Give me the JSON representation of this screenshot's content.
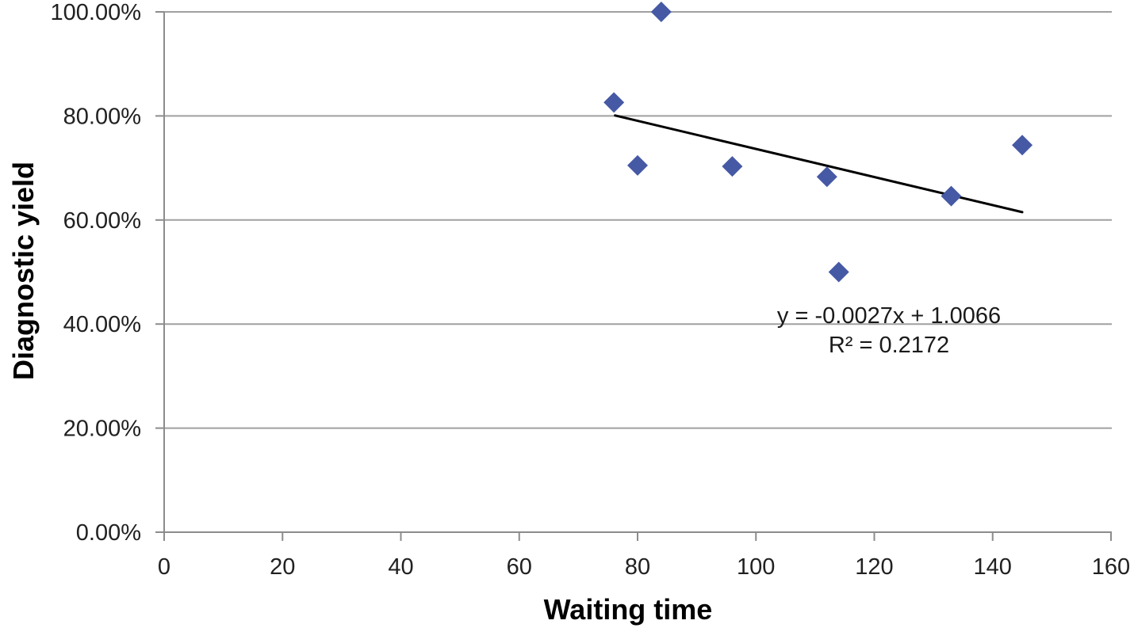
{
  "chart_data": {
    "type": "scatter",
    "title": "",
    "xlabel": "Waiting time",
    "ylabel": "Diagnostic yield",
    "xlim": [
      0,
      160
    ],
    "ylim_percent": [
      0,
      100
    ],
    "grid": "horizontal-only",
    "legend": "none",
    "x_ticks": [
      {
        "value": 0,
        "label": "0"
      },
      {
        "value": 20,
        "label": "20"
      },
      {
        "value": 40,
        "label": "40"
      },
      {
        "value": 60,
        "label": "60"
      },
      {
        "value": 80,
        "label": "80"
      },
      {
        "value": 100,
        "label": "100"
      },
      {
        "value": 120,
        "label": "120"
      },
      {
        "value": 140,
        "label": "140"
      },
      {
        "value": 160,
        "label": "160"
      }
    ],
    "y_ticks": [
      {
        "value": 0,
        "label": "0.00%"
      },
      {
        "value": 20,
        "label": "20.00%"
      },
      {
        "value": 40,
        "label": "40.00%"
      },
      {
        "value": 60,
        "label": "60.00%"
      },
      {
        "value": 80,
        "label": "80.00%"
      },
      {
        "value": 100,
        "label": "100.00%"
      }
    ],
    "points": [
      {
        "x": 76,
        "y_percent": 82.6
      },
      {
        "x": 80,
        "y_percent": 70.5
      },
      {
        "x": 84,
        "y_percent": 100
      },
      {
        "x": 96,
        "y_percent": 70.3
      },
      {
        "x": 112,
        "y_percent": 68.3
      },
      {
        "x": 114,
        "y_percent": 50
      },
      {
        "x": 133,
        "y_percent": 64.6
      },
      {
        "x": 145,
        "y_percent": 74.4
      }
    ],
    "trendline": {
      "equation": "y = -0.0027x + 1.0066",
      "r_squared": "R² = 0.2172",
      "slope": -0.0027,
      "intercept": 1.0066,
      "x_start": 76.2,
      "x_end": 145
    },
    "colors": {
      "marker": "#4659A5",
      "gridline": "#A0A0A0",
      "axis": "#8C8C8C",
      "trendline": "#000000",
      "tick_text": "#212121"
    }
  }
}
